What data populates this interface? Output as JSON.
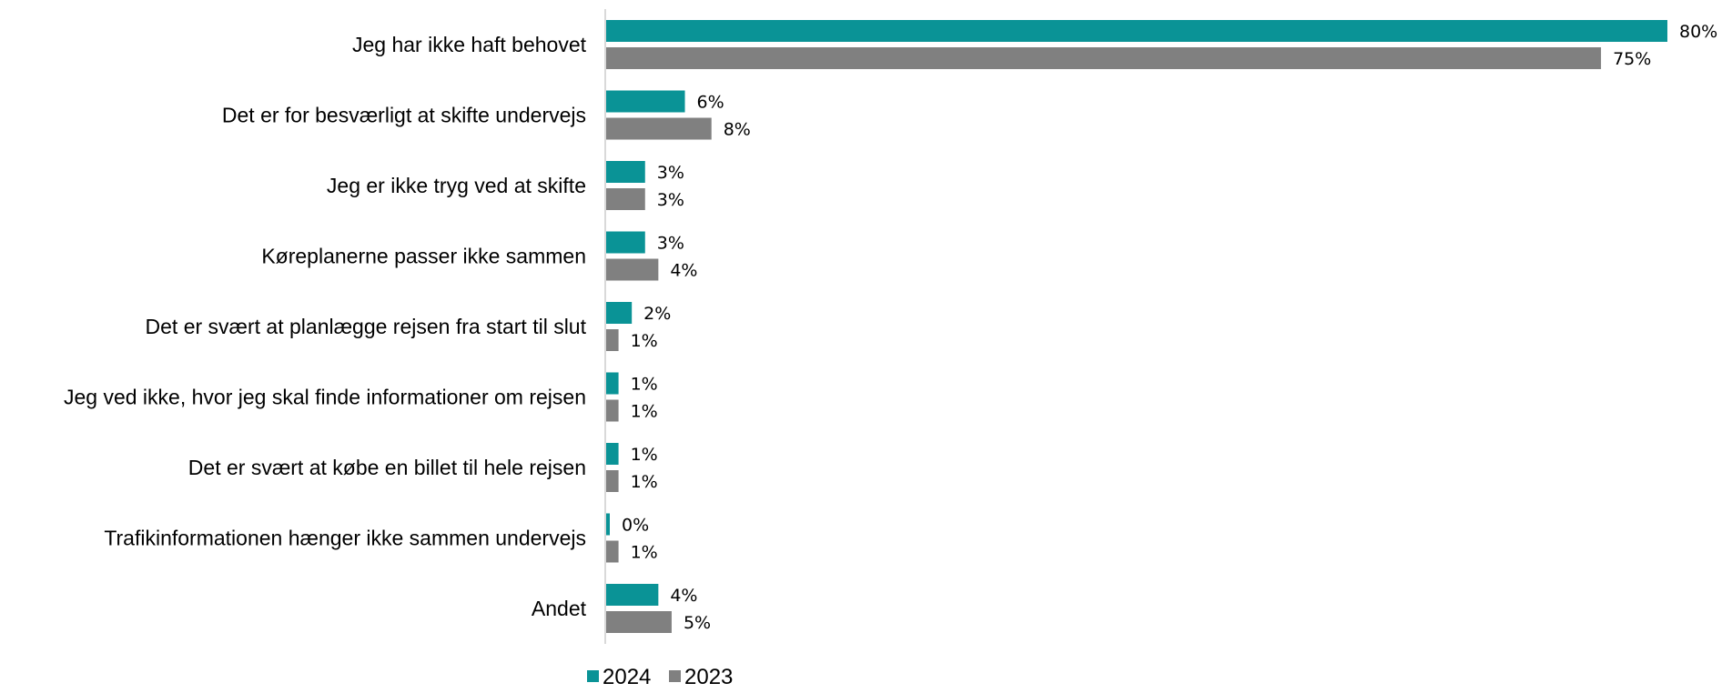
{
  "chart_data": {
    "type": "bar",
    "orientation": "horizontal",
    "categories": [
      "Jeg har ikke haft behovet",
      "Det er for besværligt at skifte undervejs",
      "Jeg er ikke tryg ved at skifte",
      "Køreplanerne passer ikke sammen",
      "Det er svært at planlægge rejsen fra start til slut",
      "Jeg ved ikke, hvor jeg skal finde informationer om rejsen",
      "Det er svært at købe en billet til hele rejsen",
      "Trafikinformationen hænger ikke sammen undervejs",
      "Andet"
    ],
    "series": [
      {
        "name": "2024",
        "color": "#0a9396",
        "values": [
          80,
          6,
          3,
          3,
          2,
          1,
          1,
          0,
          4
        ],
        "labels": [
          "80%",
          "6%",
          "3%",
          "3%",
          "2%",
          "1%",
          "1%",
          "0%",
          "4%"
        ]
      },
      {
        "name": "2023",
        "color": "#808080",
        "values": [
          75,
          8,
          3,
          4,
          1,
          1,
          1,
          1,
          5
        ],
        "labels": [
          "75%",
          "8%",
          "3%",
          "4%",
          "1%",
          "1%",
          "1%",
          "1%",
          "5%"
        ]
      }
    ],
    "xlim": [
      0,
      80
    ],
    "grid": false,
    "legend_position": "bottom",
    "axis_color": "#d9d9d9"
  }
}
